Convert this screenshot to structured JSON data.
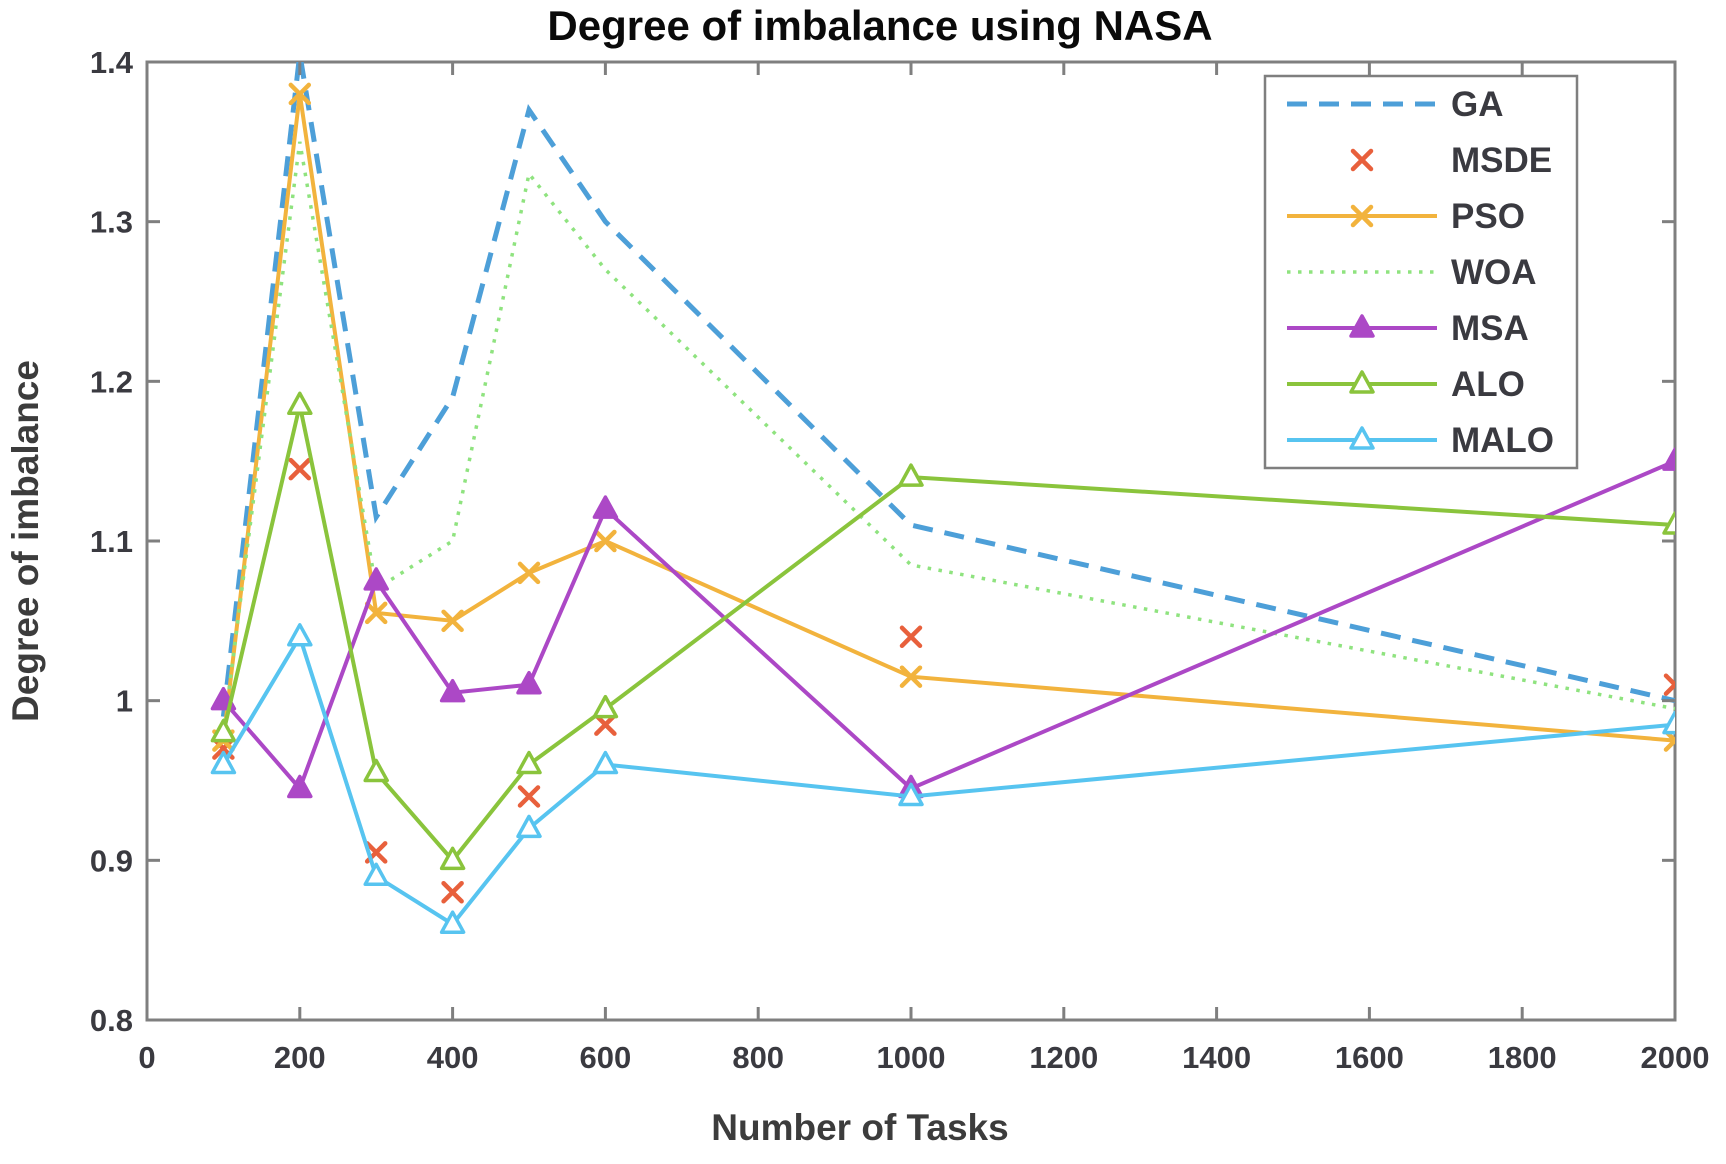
{
  "figure": {
    "kind": "matlab-style line plot screenshot",
    "background": "#ffffff",
    "frame_color": "#7f7f7f",
    "text_color": "#3a3a40"
  },
  "chart_data": {
    "type": "line",
    "title": "Degree of imbalance using NASA",
    "xlabel": "Number of Tasks",
    "ylabel": "Degree of imbalance",
    "xlim": [
      0,
      2000
    ],
    "ylim": [
      0.8,
      1.4
    ],
    "xticks": [
      0,
      200,
      400,
      600,
      800,
      1000,
      1200,
      1400,
      1600,
      1800,
      2000
    ],
    "yticks": [
      0.8,
      0.9,
      1.0,
      1.1,
      1.2,
      1.3,
      1.4
    ],
    "ytick_labels": [
      "0.8",
      "0.9",
      "1",
      "1.1",
      "1.2",
      "1.3",
      "1.4"
    ],
    "grid": false,
    "legend_position": "top-right",
    "x": [
      100,
      200,
      300,
      400,
      500,
      600,
      1000,
      2000
    ],
    "series": [
      {
        "name": "GA",
        "color": "#4D9FD8",
        "line": "dashed",
        "marker": "none",
        "values": [
          0.99,
          1.405,
          1.115,
          1.19,
          1.37,
          1.3,
          1.11,
          1.0
        ]
      },
      {
        "name": "MSDE",
        "color": "#E8603C",
        "line": "none",
        "marker": "x",
        "values": [
          0.97,
          1.145,
          0.905,
          0.88,
          0.94,
          0.985,
          1.04,
          1.01
        ]
      },
      {
        "name": "PSO",
        "color": "#F2B33D",
        "line": "solid",
        "marker": "x",
        "values": [
          0.975,
          1.38,
          1.055,
          1.05,
          1.08,
          1.1,
          1.015,
          0.975
        ]
      },
      {
        "name": "WOA",
        "color": "#8FE37F",
        "line": "dotted",
        "marker": "none",
        "values": [
          0.98,
          1.35,
          1.07,
          1.1,
          1.33,
          1.27,
          1.085,
          0.995
        ]
      },
      {
        "name": "MSA",
        "color": "#AC48C6",
        "line": "solid",
        "marker": "triangle-filled",
        "values": [
          1.0,
          0.945,
          1.075,
          1.005,
          1.01,
          1.12,
          0.945,
          1.15
        ]
      },
      {
        "name": "ALO",
        "color": "#8AC43C",
        "line": "solid",
        "marker": "triangle",
        "values": [
          0.98,
          1.185,
          0.955,
          0.9,
          0.96,
          0.995,
          1.14,
          1.11
        ]
      },
      {
        "name": "MALO",
        "color": "#57C4F0",
        "line": "solid",
        "marker": "triangle",
        "values": [
          0.96,
          1.04,
          0.89,
          0.86,
          0.92,
          0.96,
          0.94,
          0.985
        ]
      }
    ]
  }
}
